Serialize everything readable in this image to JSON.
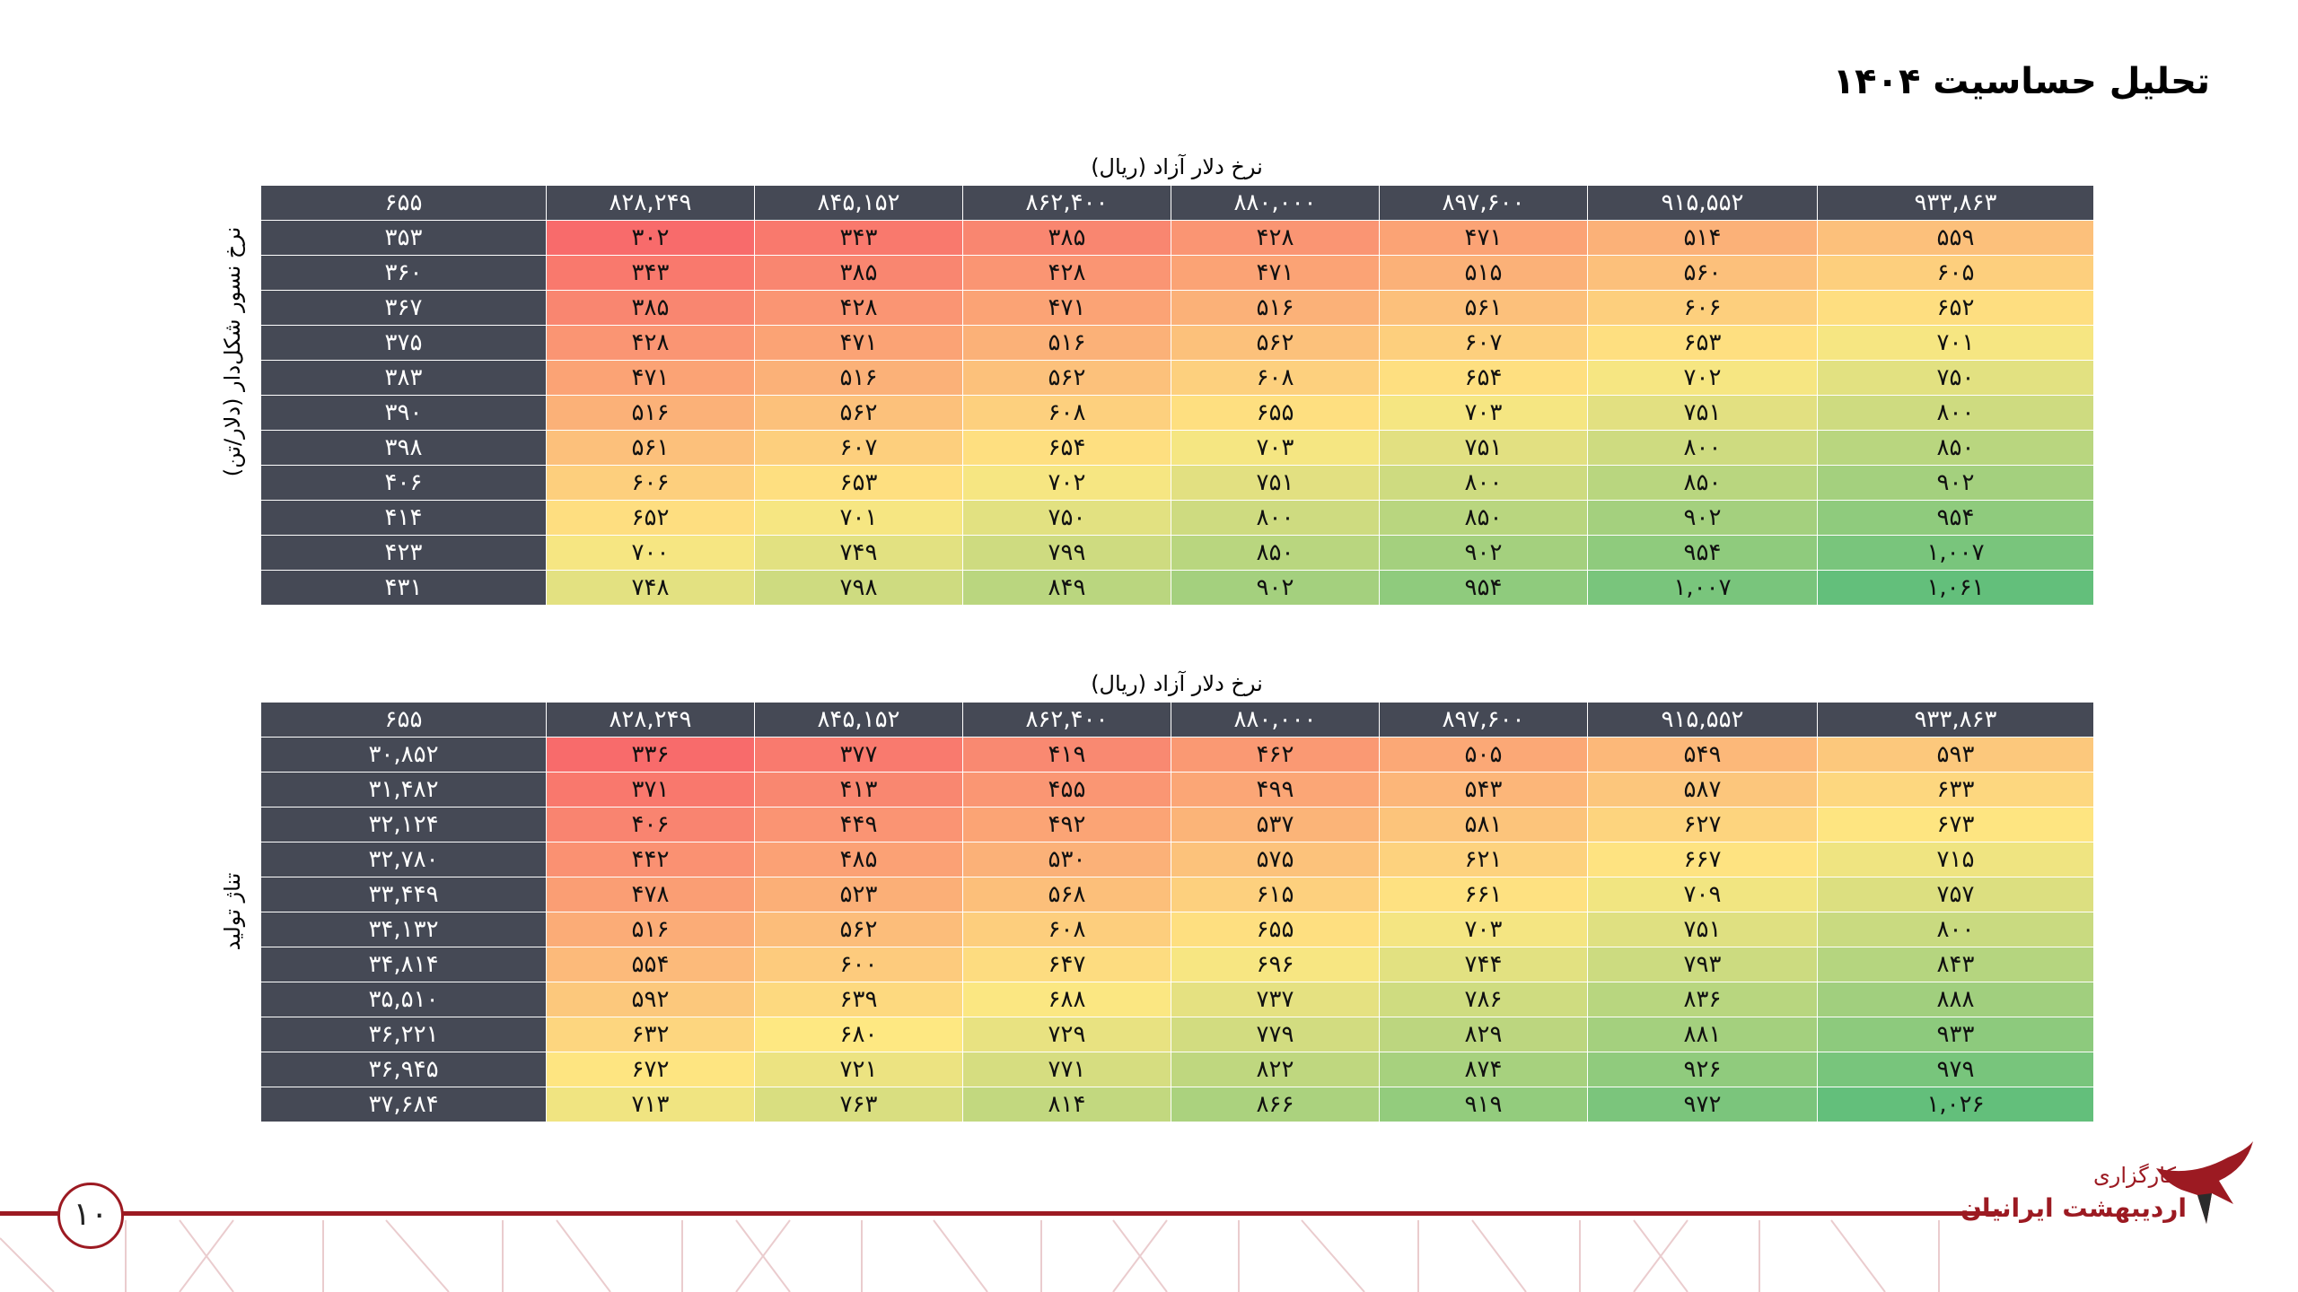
{
  "page": {
    "title": "تحلیل حساسیت ۱۴۰۴",
    "page_number": "۱۰"
  },
  "logo": {
    "line1": "کارگزاری",
    "line2": "اردیبهشت ایرانیان"
  },
  "colors": {
    "header_bg": "#454955",
    "low": "#f86b6b",
    "mid": "#fee882",
    "high": "#63bf7b",
    "accent": "#9c1a22"
  },
  "tables": [
    {
      "caption": "نرخ دلار آزاد (ریال)",
      "side_label": "نرخ نسور شکل‌دار  (دلار/تن)",
      "corner": "۶۵۵",
      "columns": [
        "۸۲۸,۲۴۹",
        "۸۴۵,۱۵۲",
        "۸۶۲,۴۰۰",
        "۸۸۰,۰۰۰",
        "۸۹۷,۶۰۰",
        "۹۱۵,۵۵۲",
        "۹۳۳,۸۶۳"
      ],
      "column_values": [
        828249,
        845152,
        862400,
        880000,
        897600,
        915552,
        933863
      ],
      "rows": [
        {
          "label": "۳۵۳",
          "cells": [
            "۳۰۲",
            "۳۴۳",
            "۳۸۵",
            "۴۲۸",
            "۴۷۱",
            "۵۱۴",
            "۵۵۹"
          ],
          "values": [
            302,
            343,
            385,
            428,
            471,
            514,
            559
          ]
        },
        {
          "label": "۳۶۰",
          "cells": [
            "۳۴۳",
            "۳۸۵",
            "۴۲۸",
            "۴۷۱",
            "۵۱۵",
            "۵۶۰",
            "۶۰۵"
          ],
          "values": [
            343,
            385,
            428,
            471,
            515,
            560,
            605
          ]
        },
        {
          "label": "۳۶۷",
          "cells": [
            "۳۸۵",
            "۴۲۸",
            "۴۷۱",
            "۵۱۶",
            "۵۶۱",
            "۶۰۶",
            "۶۵۲"
          ],
          "values": [
            385,
            428,
            471,
            516,
            561,
            606,
            652
          ]
        },
        {
          "label": "۳۷۵",
          "cells": [
            "۴۲۸",
            "۴۷۱",
            "۵۱۶",
            "۵۶۲",
            "۶۰۷",
            "۶۵۳",
            "۷۰۱"
          ],
          "values": [
            428,
            471,
            516,
            562,
            607,
            653,
            701
          ]
        },
        {
          "label": "۳۸۳",
          "cells": [
            "۴۷۱",
            "۵۱۶",
            "۵۶۲",
            "۶۰۸",
            "۶۵۴",
            "۷۰۲",
            "۷۵۰"
          ],
          "values": [
            471,
            516,
            562,
            608,
            654,
            702,
            750
          ]
        },
        {
          "label": "۳۹۰",
          "cells": [
            "۵۱۶",
            "۵۶۲",
            "۶۰۸",
            "۶۵۵",
            "۷۰۳",
            "۷۵۱",
            "۸۰۰"
          ],
          "values": [
            516,
            562,
            608,
            655,
            703,
            751,
            800
          ]
        },
        {
          "label": "۳۹۸",
          "cells": [
            "۵۶۱",
            "۶۰۷",
            "۶۵۴",
            "۷۰۳",
            "۷۵۱",
            "۸۰۰",
            "۸۵۰"
          ],
          "values": [
            561,
            607,
            654,
            703,
            751,
            800,
            850
          ]
        },
        {
          "label": "۴۰۶",
          "cells": [
            "۶۰۶",
            "۶۵۳",
            "۷۰۲",
            "۷۵۱",
            "۸۰۰",
            "۸۵۰",
            "۹۰۲"
          ],
          "values": [
            606,
            653,
            702,
            751,
            800,
            850,
            902
          ]
        },
        {
          "label": "۴۱۴",
          "cells": [
            "۶۵۲",
            "۷۰۱",
            "۷۵۰",
            "۸۰۰",
            "۸۵۰",
            "۹۰۲",
            "۹۵۴"
          ],
          "values": [
            652,
            701,
            750,
            800,
            850,
            902,
            954
          ]
        },
        {
          "label": "۴۲۳",
          "cells": [
            "۷۰۰",
            "۷۴۹",
            "۷۹۹",
            "۸۵۰",
            "۹۰۲",
            "۹۵۴",
            "۱,۰۰۷"
          ],
          "values": [
            700,
            749,
            799,
            850,
            902,
            954,
            1007
          ]
        },
        {
          "label": "۴۳۱",
          "cells": [
            "۷۴۸",
            "۷۹۸",
            "۸۴۹",
            "۹۰۲",
            "۹۵۴",
            "۱,۰۰۷",
            "۱,۰۶۱"
          ],
          "values": [
            748,
            798,
            849,
            902,
            954,
            1007,
            1061
          ]
        }
      ]
    },
    {
      "caption": "نرخ دلار آزاد (ریال)",
      "side_label": "تناژ تولید",
      "corner": "۶۵۵",
      "columns": [
        "۸۲۸,۲۴۹",
        "۸۴۵,۱۵۲",
        "۸۶۲,۴۰۰",
        "۸۸۰,۰۰۰",
        "۸۹۷,۶۰۰",
        "۹۱۵,۵۵۲",
        "۹۳۳,۸۶۳"
      ],
      "column_values": [
        828249,
        845152,
        862400,
        880000,
        897600,
        915552,
        933863
      ],
      "rows": [
        {
          "label": "۳۰,۸۵۲",
          "cells": [
            "۳۳۶",
            "۳۷۷",
            "۴۱۹",
            "۴۶۲",
            "۵۰۵",
            "۵۴۹",
            "۵۹۳"
          ],
          "values": [
            336,
            377,
            419,
            462,
            505,
            549,
            593
          ]
        },
        {
          "label": "۳۱,۴۸۲",
          "cells": [
            "۳۷۱",
            "۴۱۳",
            "۴۵۵",
            "۴۹۹",
            "۵۴۳",
            "۵۸۷",
            "۶۳۳"
          ],
          "values": [
            371,
            413,
            455,
            499,
            543,
            587,
            633
          ]
        },
        {
          "label": "۳۲,۱۲۴",
          "cells": [
            "۴۰۶",
            "۴۴۹",
            "۴۹۲",
            "۵۳۷",
            "۵۸۱",
            "۶۲۷",
            "۶۷۳"
          ],
          "values": [
            406,
            449,
            492,
            537,
            581,
            627,
            673
          ]
        },
        {
          "label": "۳۲,۷۸۰",
          "cells": [
            "۴۴۲",
            "۴۸۵",
            "۵۳۰",
            "۵۷۵",
            "۶۲۱",
            "۶۶۷",
            "۷۱۵"
          ],
          "values": [
            442,
            485,
            530,
            575,
            621,
            667,
            715
          ]
        },
        {
          "label": "۳۳,۴۴۹",
          "cells": [
            "۴۷۸",
            "۵۲۳",
            "۵۶۸",
            "۶۱۵",
            "۶۶۱",
            "۷۰۹",
            "۷۵۷"
          ],
          "values": [
            478,
            523,
            568,
            615,
            661,
            709,
            757
          ]
        },
        {
          "label": "۳۴,۱۳۲",
          "cells": [
            "۵۱۶",
            "۵۶۲",
            "۶۰۸",
            "۶۵۵",
            "۷۰۳",
            "۷۵۱",
            "۸۰۰"
          ],
          "values": [
            516,
            562,
            608,
            655,
            703,
            751,
            800
          ]
        },
        {
          "label": "۳۴,۸۱۴",
          "cells": [
            "۵۵۴",
            "۶۰۰",
            "۶۴۷",
            "۶۹۶",
            "۷۴۴",
            "۷۹۳",
            "۸۴۳"
          ],
          "values": [
            554,
            600,
            647,
            696,
            744,
            793,
            843
          ]
        },
        {
          "label": "۳۵,۵۱۰",
          "cells": [
            "۵۹۲",
            "۶۳۹",
            "۶۸۸",
            "۷۳۷",
            "۷۸۶",
            "۸۳۶",
            "۸۸۸"
          ],
          "values": [
            592,
            639,
            688,
            737,
            786,
            836,
            888
          ]
        },
        {
          "label": "۳۶,۲۲۱",
          "cells": [
            "۶۳۲",
            "۶۸۰",
            "۷۲۹",
            "۷۷۹",
            "۸۲۹",
            "۸۸۱",
            "۹۳۳"
          ],
          "values": [
            632,
            680,
            729,
            779,
            829,
            881,
            933
          ]
        },
        {
          "label": "۳۶,۹۴۵",
          "cells": [
            "۶۷۲",
            "۷۲۱",
            "۷۷۱",
            "۸۲۲",
            "۸۷۴",
            "۹۲۶",
            "۹۷۹"
          ],
          "values": [
            672,
            721,
            771,
            822,
            874,
            926,
            979
          ]
        },
        {
          "label": "۳۷,۶۸۴",
          "cells": [
            "۷۱۳",
            "۷۶۳",
            "۸۱۴",
            "۸۶۶",
            "۹۱۹",
            "۹۷۲",
            "۱,۰۲۶"
          ],
          "values": [
            713,
            763,
            814,
            866,
            919,
            972,
            1026
          ]
        }
      ]
    }
  ]
}
